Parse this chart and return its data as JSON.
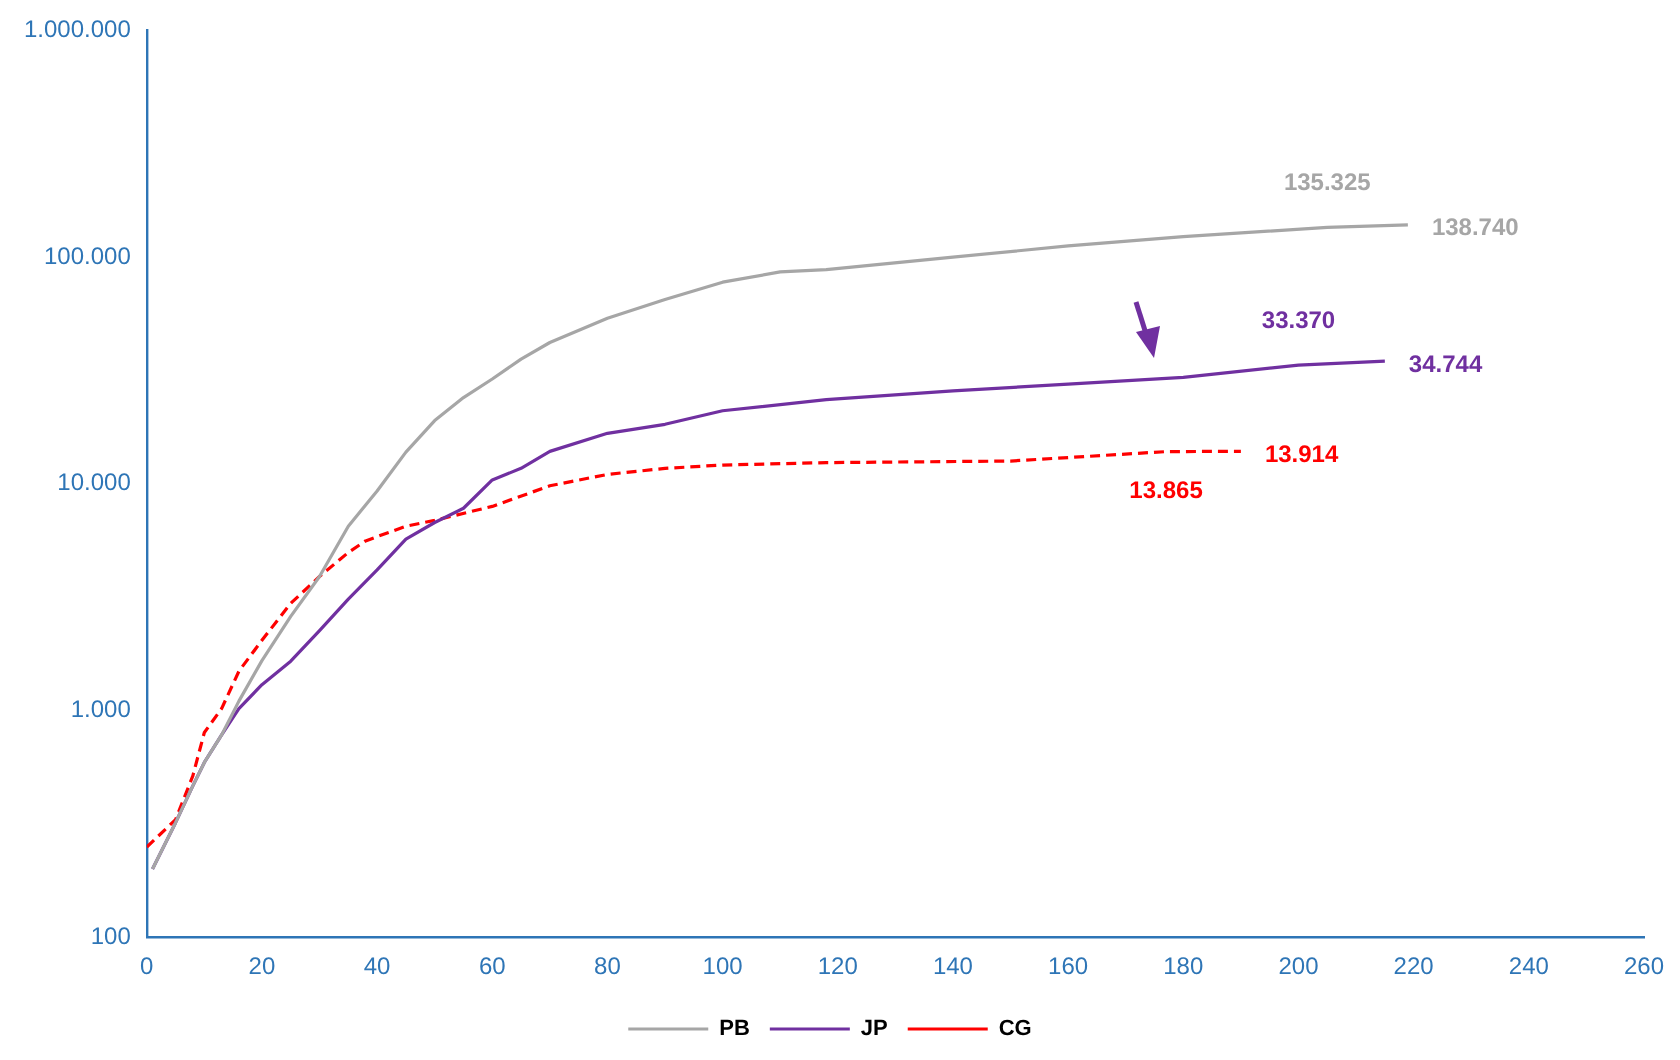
{
  "chart_data": {
    "type": "line",
    "log": "y",
    "grid": false,
    "legend": "bottom",
    "marker": "none",
    "xlim": [
      0,
      260
    ],
    "xticks": [
      0,
      20,
      40,
      60,
      80,
      100,
      120,
      140,
      160,
      180,
      200,
      220,
      240,
      260
    ],
    "ylim": [
      100,
      1000000
    ],
    "yticks": [
      {
        "value": 100,
        "label": "100"
      },
      {
        "value": 1000,
        "label": "1.000"
      },
      {
        "value": 10000,
        "label": "10.000"
      },
      {
        "value": 100000,
        "label": "100.000"
      },
      {
        "value": 1000000,
        "label": "1.000.000"
      }
    ],
    "series": [
      {
        "name": "PB",
        "color": "#a6a6a6",
        "line_style": "solid",
        "x": [
          1,
          5,
          8,
          10,
          13,
          16,
          20,
          25,
          30,
          35,
          40,
          45,
          50,
          55,
          60,
          65,
          70,
          80,
          90,
          100,
          110,
          118,
          140,
          160,
          180,
          205,
          219
        ],
        "values": [
          200,
          320,
          465,
          590,
          780,
          1100,
          1660,
          2600,
          3900,
          6500,
          9300,
          13800,
          19000,
          24000,
          29000,
          35500,
          42000,
          53700,
          65000,
          77500,
          86000,
          88000,
          100000,
          112000,
          123000,
          135325,
          138740
        ]
      },
      {
        "name": "JP",
        "color": "#7030a0",
        "line_style": "solid",
        "x": [
          1,
          5,
          8,
          10,
          13,
          16,
          20,
          25,
          30,
          35,
          40,
          45,
          50,
          55,
          60,
          65,
          70,
          80,
          90,
          100,
          118,
          140,
          160,
          180,
          200,
          215
        ],
        "values": [
          200,
          320,
          465,
          590,
          780,
          1020,
          1300,
          1650,
          2250,
          3100,
          4170,
          5700,
          6750,
          7800,
          10400,
          11700,
          13900,
          16700,
          18300,
          21000,
          23500,
          25700,
          27500,
          29500,
          33370,
          34744
        ]
      },
      {
        "name": "CG",
        "color": "#ff0000",
        "line_style": "dashed",
        "x": [
          0,
          5,
          8,
          10,
          13,
          16,
          20,
          25,
          30,
          35,
          38,
          42,
          45,
          50,
          60,
          70,
          80,
          90,
          100,
          118,
          150,
          177,
          190
        ],
        "values": [
          250,
          330,
          515,
          800,
          1020,
          1490,
          2040,
          2970,
          3900,
          4980,
          5600,
          6100,
          6500,
          6900,
          7950,
          9800,
          11000,
          11700,
          12100,
          12400,
          12600,
          13865,
          13914
        ]
      }
    ],
    "annotations": [
      {
        "text": "135.325",
        "x": 205,
        "y": 135325
      },
      {
        "text": "138.740",
        "x": 219,
        "y": 138740
      },
      {
        "text": "33.370",
        "x": 200,
        "y": 33370
      },
      {
        "text": "34.744",
        "x": 215,
        "y": 34744
      },
      {
        "text": "13.914",
        "x": 190,
        "y": 13914
      },
      {
        "text": "13.865",
        "x": 177,
        "y": 13865
      }
    ]
  }
}
